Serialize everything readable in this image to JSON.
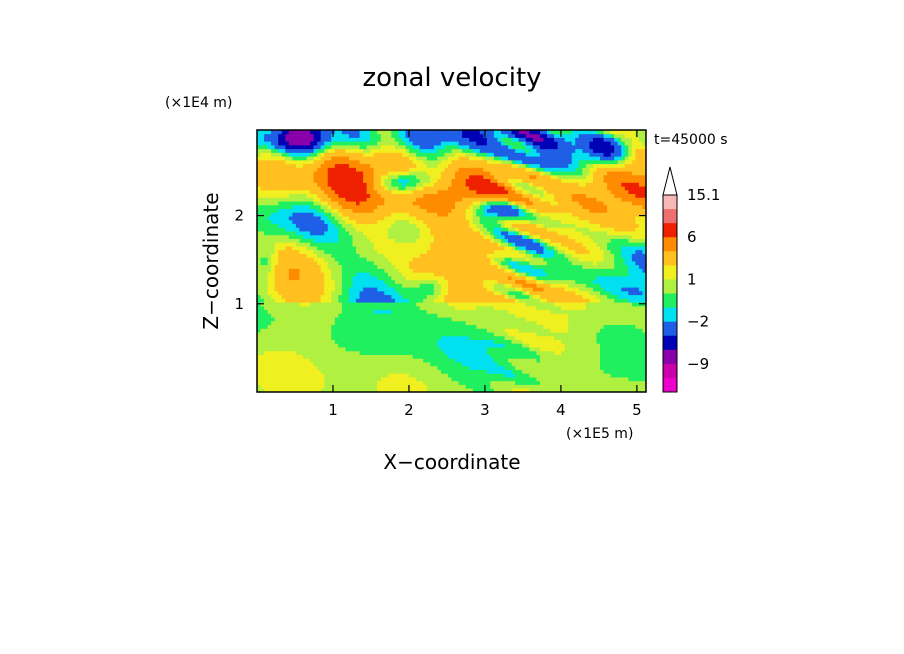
{
  "chart_data": {
    "type": "heatmap",
    "title": "zonal velocity",
    "xlabel": "X−coordinate",
    "ylabel": "Z−coordinate",
    "x_unit": "(×1E5 m)",
    "y_unit": "(×1E4 m)",
    "time_label": "t=45000 s",
    "xlim": [
      0,
      5.12
    ],
    "ylim": [
      0,
      2.97
    ],
    "x_ticks": [
      {
        "value": 1,
        "label": "1"
      },
      {
        "value": 2,
        "label": "2"
      },
      {
        "value": 3,
        "label": "3"
      },
      {
        "value": 4,
        "label": "4"
      },
      {
        "value": 5,
        "label": "5"
      }
    ],
    "y_ticks": [
      {
        "value": 1,
        "label": "1"
      },
      {
        "value": 2,
        "label": "2"
      }
    ],
    "colorbar": {
      "levels": [
        {
          "from": -15.1,
          "to": -12,
          "color": "#ee00cc"
        },
        {
          "from": -12,
          "to": -9,
          "color": "#cc00aa"
        },
        {
          "from": -9,
          "to": -6,
          "color": "#8800aa"
        },
        {
          "from": -6,
          "to": -4,
          "color": "#0000b4"
        },
        {
          "from": -4,
          "to": -2,
          "color": "#1f5fe6"
        },
        {
          "from": -2,
          "to": -1,
          "color": "#00e0f0"
        },
        {
          "from": -1,
          "to": 0,
          "color": "#20f060"
        },
        {
          "from": 0,
          "to": 1,
          "color": "#b0f040"
        },
        {
          "from": 1,
          "to": 2,
          "color": "#f0f020"
        },
        {
          "from": 2,
          "to": 4,
          "color": "#ffc020"
        },
        {
          "from": 4,
          "to": 6,
          "color": "#ff8c00"
        },
        {
          "from": 6,
          "to": 9,
          "color": "#ee2000"
        },
        {
          "from": 9,
          "to": 12,
          "color": "#f07070"
        },
        {
          "from": 12,
          "to": 15.1,
          "color": "#f8b8b8"
        }
      ],
      "tick_labels": [
        {
          "value": 15.1,
          "label": "15.1"
        },
        {
          "value": 6,
          "label": "6"
        },
        {
          "value": 1,
          "label": "1"
        },
        {
          "value": -2,
          "label": "−2"
        },
        {
          "value": -9,
          "label": "−9"
        }
      ],
      "extend": "max"
    },
    "field_bands": [
      {
        "z_range": [
          2.55,
          2.97
        ],
        "description": "mixed blue negative and orange positive patches"
      },
      {
        "z_range": [
          2.0,
          2.55
        ],
        "description": "orange/red positive band with dark blue lenses"
      },
      {
        "z_range": [
          1.4,
          2.0
        ],
        "description": "yellow/orange with cyan and blue patches"
      },
      {
        "z_range": [
          0.8,
          1.4
        ],
        "description": "green/yellow near zero with orange streaks"
      },
      {
        "z_range": [
          0.0,
          0.8
        ],
        "description": "green and yellow near zero, orange blobs"
      }
    ]
  }
}
